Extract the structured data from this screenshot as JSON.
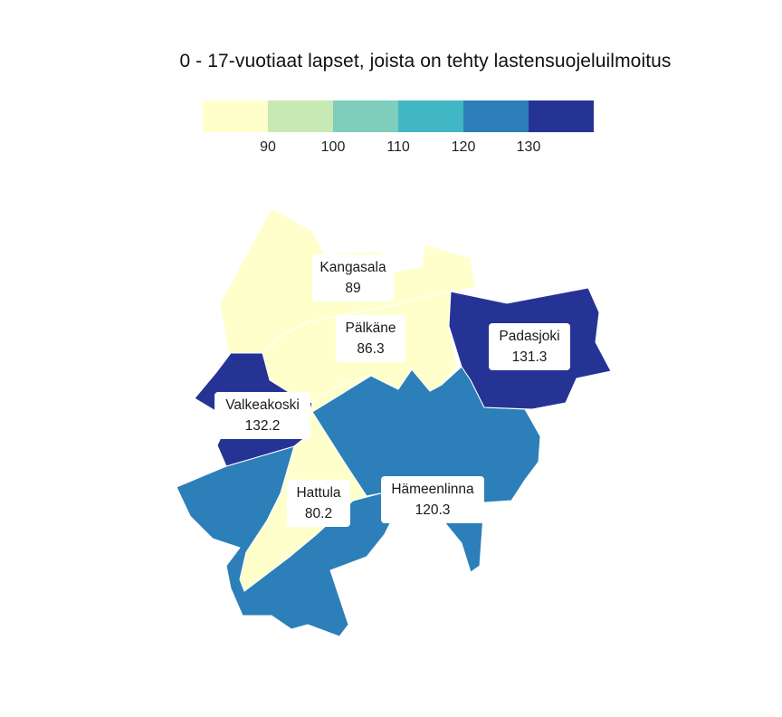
{
  "title": "0 - 17-vuotiaat lapset, joista on tehty lastensuojeluilmoitus",
  "legend": {
    "colors": [
      "#ffffcc",
      "#c7e9b4",
      "#7fcdbb",
      "#41b6c4",
      "#2c7fb8",
      "#253494"
    ],
    "ticks": [
      "90",
      "100",
      "110",
      "120",
      "130"
    ]
  },
  "municipalities": [
    {
      "name": "Kangasala",
      "value": "89",
      "color": "#ffffcc"
    },
    {
      "name": "Pälkäne",
      "value": "86.3",
      "color": "#ffffcc"
    },
    {
      "name": "Padasjoki",
      "value": "131.3",
      "color": "#253494"
    },
    {
      "name": "Valkeakoski",
      "value": "132.2",
      "color": "#253494"
    },
    {
      "name": "Hattula",
      "value": "80.2",
      "color": "#ffffcc"
    },
    {
      "name": "Hämeenlinna",
      "value": "120.3",
      "color": "#2c7fb8"
    }
  ]
}
